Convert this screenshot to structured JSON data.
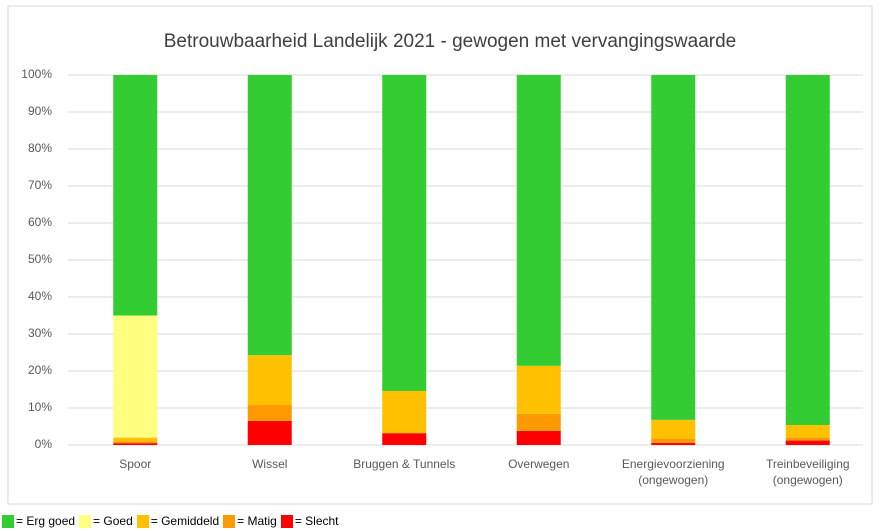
{
  "chart_data": {
    "type": "stacked_bar",
    "title": "Betrouwbaarheid Landelijk 2021 - gewogen met vervangingswaarde",
    "categories": [
      "Spoor",
      "Wissel",
      "Bruggen & Tunnels",
      "Overwegen",
      "Energievoorziening\n(ongewogen)",
      "Treinbeveiliging\n(ongewogen)"
    ],
    "series": [
      {
        "name": "= Erg goed",
        "color": "#33cc33",
        "values": [
          65,
          75.7,
          85.4,
          78.6,
          93.2,
          94.6
        ]
      },
      {
        "name": "= Goed",
        "color": "#ffff80",
        "values": [
          33,
          0,
          0,
          0,
          0,
          0
        ]
      },
      {
        "name": "= Gemiddeld",
        "color": "#ffc000",
        "values": [
          1,
          13.5,
          11.4,
          13,
          5,
          3.4
        ]
      },
      {
        "name": "= Matig",
        "color": "#ff9900",
        "values": [
          0.5,
          4.3,
          0,
          4.6,
          1.2,
          0.8
        ]
      },
      {
        "name": "= Slecht",
        "color": "#ff0000",
        "values": [
          0.5,
          6.5,
          3.2,
          3.8,
          0.6,
          1.2
        ]
      }
    ],
    "ylim": [
      0,
      100
    ],
    "yticks": [
      {
        "value": 0,
        "label": "0%"
      },
      {
        "value": 10,
        "label": "10%"
      },
      {
        "value": 20,
        "label": "20%"
      },
      {
        "value": 30,
        "label": "30%"
      },
      {
        "value": 40,
        "label": "40%"
      },
      {
        "value": 50,
        "label": "50%"
      },
      {
        "value": 60,
        "label": "60%"
      },
      {
        "value": 70,
        "label": "70%"
      },
      {
        "value": 80,
        "label": "80%"
      },
      {
        "value": 90,
        "label": "90%"
      },
      {
        "value": 100,
        "label": "100%"
      }
    ],
    "grid": true
  }
}
